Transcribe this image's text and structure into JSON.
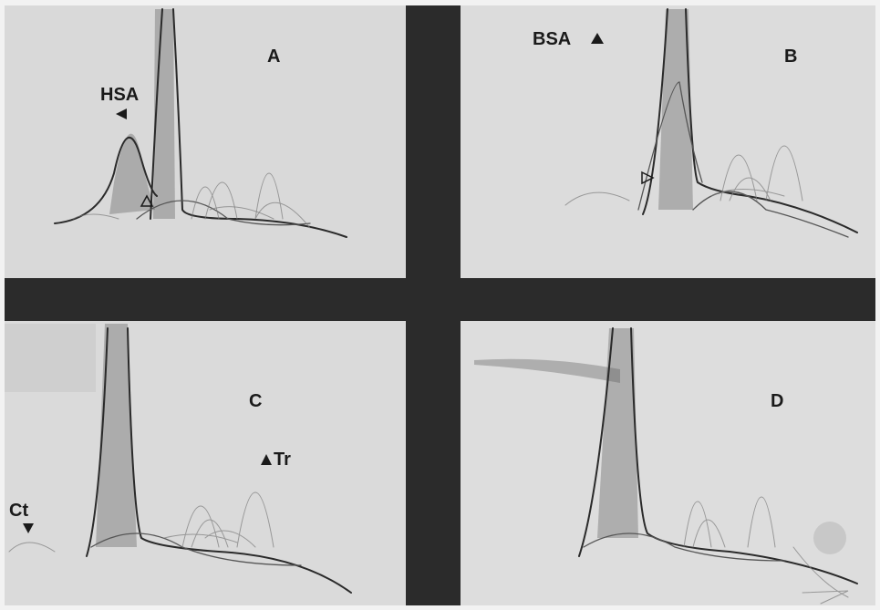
{
  "panels": [
    {
      "label": "A",
      "markers": [
        "HSA"
      ]
    },
    {
      "label": "B",
      "markers": [
        "BSA"
      ]
    },
    {
      "label": "C",
      "markers": [
        "Tr",
        "Ct"
      ]
    },
    {
      "label": "D",
      "markers": []
    }
  ]
}
